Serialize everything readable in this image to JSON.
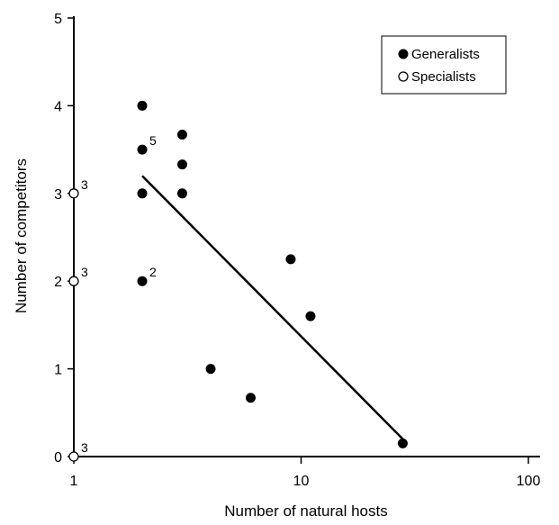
{
  "chart_data": {
    "type": "scatter",
    "xlabel": "Number of natural hosts",
    "ylabel": "Number of competitors",
    "xscale": "log",
    "xlim": [
      1,
      100
    ],
    "ylim": [
      0,
      5
    ],
    "x_ticks": [
      "1",
      "10",
      "100"
    ],
    "y_ticks": [
      "0",
      "1",
      "2",
      "3",
      "4",
      "5"
    ],
    "legend": {
      "placement": "top-right",
      "entries": [
        "Generalists",
        "Specialists"
      ]
    },
    "series": [
      {
        "name": "Generalists",
        "marker": "filled-circle",
        "color": "#000000",
        "points": [
          {
            "x": 2,
            "y": 4.0
          },
          {
            "x": 2,
            "y": 3.5
          },
          {
            "x": 2,
            "y": 3.0
          },
          {
            "x": 2,
            "y": 2.0
          },
          {
            "x": 3,
            "y": 3.67
          },
          {
            "x": 3,
            "y": 3.33
          },
          {
            "x": 3,
            "y": 3.0
          },
          {
            "x": 4,
            "y": 1.0
          },
          {
            "x": 6,
            "y": 0.67
          },
          {
            "x": 9,
            "y": 2.25
          },
          {
            "x": 11,
            "y": 1.6
          },
          {
            "x": 28,
            "y": 0.15
          }
        ]
      },
      {
        "name": "Specialists",
        "marker": "open-circle",
        "color": "#000000",
        "points": [
          {
            "x": 1,
            "y": 3.0
          },
          {
            "x": 1,
            "y": 2.0
          },
          {
            "x": 1,
            "y": 0.0
          }
        ]
      }
    ],
    "annotations": [
      {
        "text": "5",
        "x": 2,
        "y": 3.5
      },
      {
        "text": "2",
        "x": 2,
        "y": 2.0
      },
      {
        "text": "3",
        "x": 1,
        "y": 3.0
      },
      {
        "text": "3",
        "x": 1,
        "y": 2.0
      },
      {
        "text": "3",
        "x": 1,
        "y": 0.0
      }
    ],
    "trendline": {
      "x": [
        2,
        28
      ],
      "y": [
        3.2,
        0.2
      ]
    }
  }
}
